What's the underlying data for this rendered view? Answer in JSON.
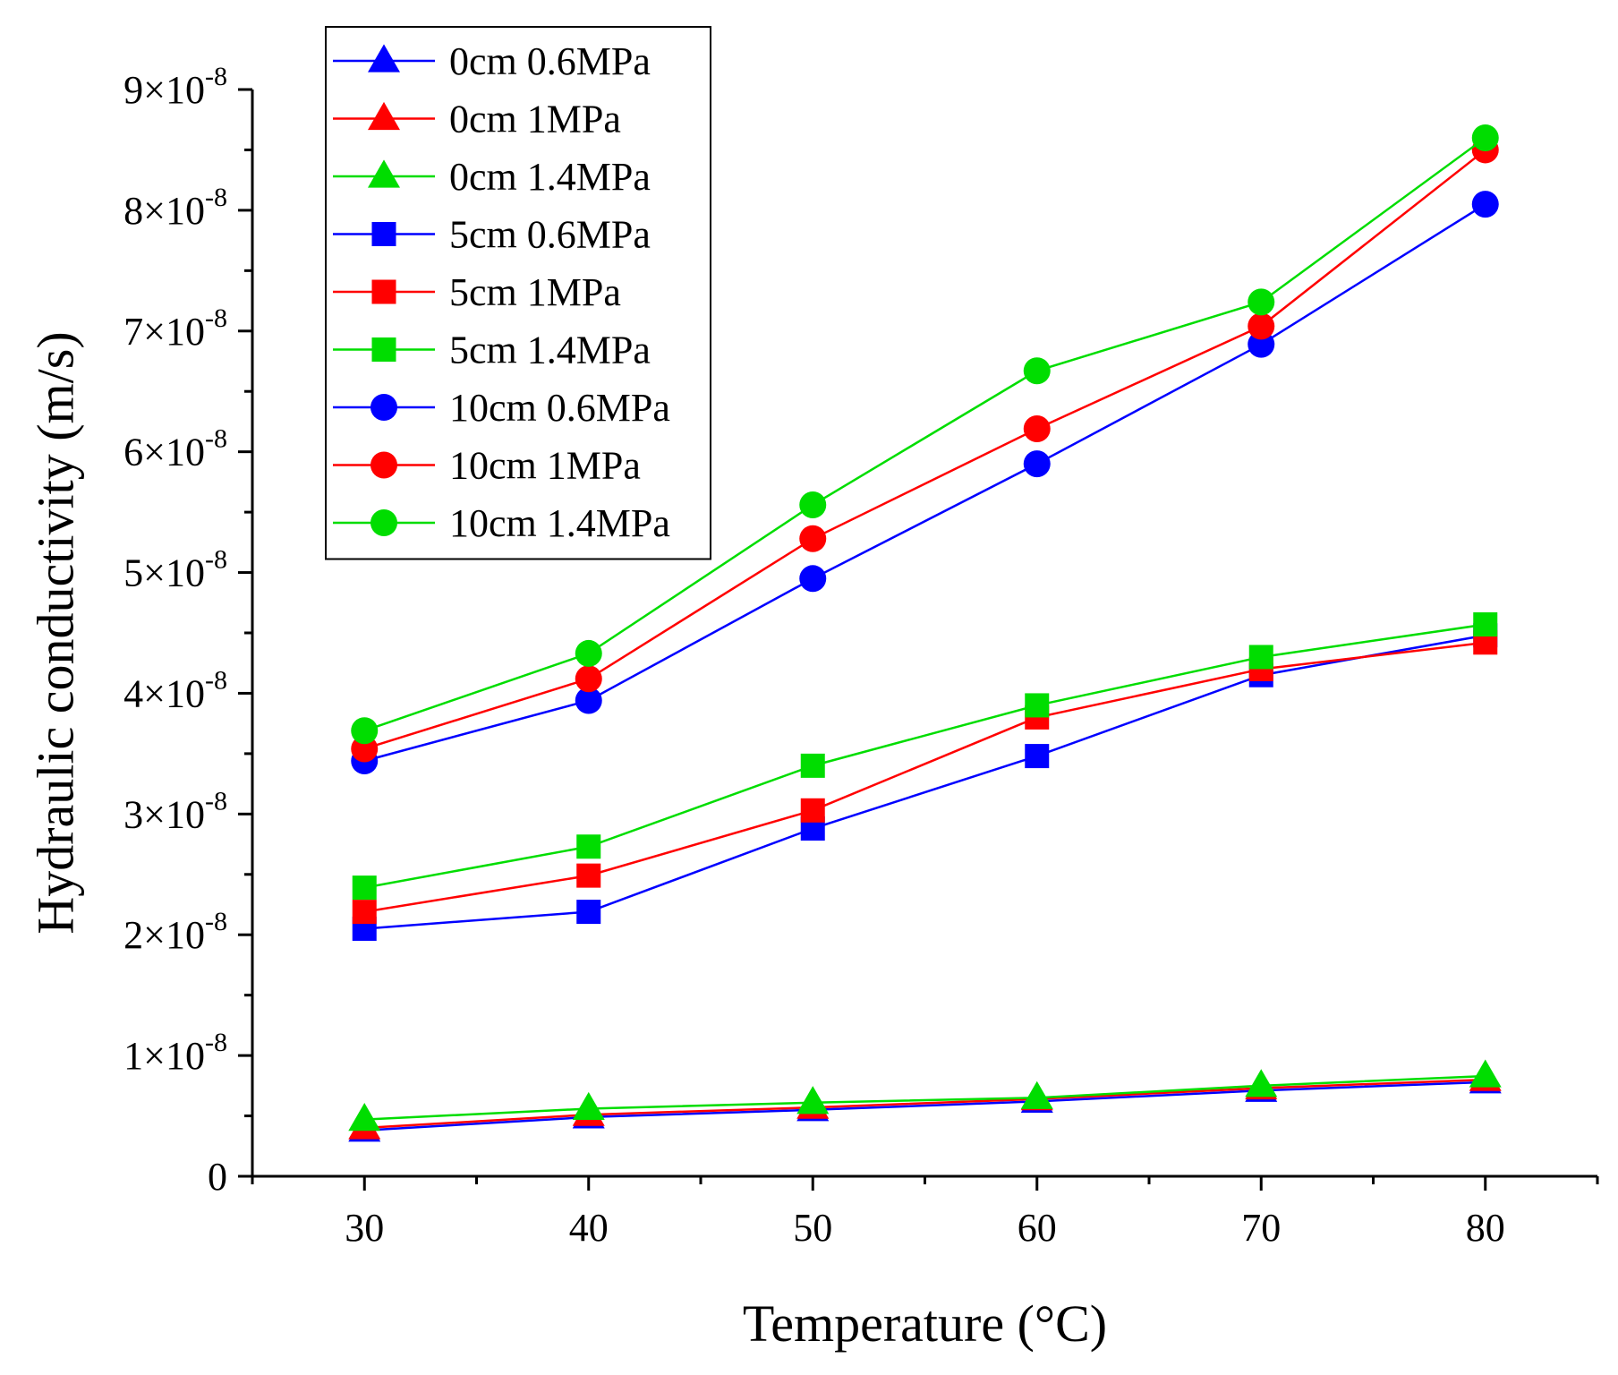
{
  "chart_data": {
    "type": "line",
    "title": "",
    "xlabel": "Temperature (°C)",
    "ylabel": "Hydraulic conductivity (m/s)",
    "xlim": [
      25,
      85
    ],
    "ylim": [
      0,
      9e-08
    ],
    "x": [
      30,
      40,
      50,
      60,
      70,
      80
    ],
    "x_ticks": [
      30,
      40,
      50,
      60,
      70,
      80
    ],
    "y_ticks": [
      {
        "value": 0,
        "mantissa": "0",
        "exponent": ""
      },
      {
        "value": 1e-08,
        "mantissa": "1×10",
        "exponent": "-8"
      },
      {
        "value": 2e-08,
        "mantissa": "2×10",
        "exponent": "-8"
      },
      {
        "value": 3e-08,
        "mantissa": "3×10",
        "exponent": "-8"
      },
      {
        "value": 4e-08,
        "mantissa": "4×10",
        "exponent": "-8"
      },
      {
        "value": 5e-08,
        "mantissa": "5×10",
        "exponent": "-8"
      },
      {
        "value": 6e-08,
        "mantissa": "6×10",
        "exponent": "-8"
      },
      {
        "value": 7e-08,
        "mantissa": "7×10",
        "exponent": "-8"
      },
      {
        "value": 8e-08,
        "mantissa": "8×10",
        "exponent": "-8"
      },
      {
        "value": 9e-08,
        "mantissa": "9×10",
        "exponent": "-8"
      }
    ],
    "grid": false,
    "legend_position": "top-left",
    "series": [
      {
        "name": "0cm 0.6MPa",
        "color": "#0000ff",
        "marker": "triangle",
        "values": [
          3.8e-09,
          4.9e-09,
          5.5e-09,
          6.2e-09,
          7.1e-09,
          7.8e-09
        ]
      },
      {
        "name": "0cm 1MPa",
        "color": "#ff0000",
        "marker": "triangle",
        "values": [
          4e-09,
          5.1e-09,
          5.7e-09,
          6.4e-09,
          7.3e-09,
          8e-09
        ]
      },
      {
        "name": "0cm 1.4MPa",
        "color": "#00dd00",
        "marker": "triangle",
        "values": [
          4.7e-09,
          5.6e-09,
          6.1e-09,
          6.5e-09,
          7.5e-09,
          8.3e-09
        ]
      },
      {
        "name": "5cm 0.6MPa",
        "color": "#0000ff",
        "marker": "square",
        "values": [
          2.05e-08,
          2.19e-08,
          2.88e-08,
          3.48e-08,
          4.15e-08,
          4.48e-08
        ]
      },
      {
        "name": "5cm 1MPa",
        "color": "#ff0000",
        "marker": "square",
        "values": [
          2.19e-08,
          2.49e-08,
          3.03e-08,
          3.8e-08,
          4.2e-08,
          4.42e-08
        ]
      },
      {
        "name": "5cm 1.4MPa",
        "color": "#00dd00",
        "marker": "square",
        "values": [
          2.39e-08,
          2.73e-08,
          3.4e-08,
          3.9e-08,
          4.3e-08,
          4.57e-08
        ]
      },
      {
        "name": "10cm 0.6MPa",
        "color": "#0000ff",
        "marker": "circle",
        "values": [
          3.44e-08,
          3.94e-08,
          4.95e-08,
          5.9e-08,
          6.89e-08,
          8.05e-08
        ]
      },
      {
        "name": "10cm 1MPa",
        "color": "#ff0000",
        "marker": "circle",
        "values": [
          3.54e-08,
          4.12e-08,
          5.28e-08,
          6.19e-08,
          7.04e-08,
          8.5e-08
        ]
      },
      {
        "name": "10cm 1.4MPa",
        "color": "#00dd00",
        "marker": "circle",
        "values": [
          3.69e-08,
          4.33e-08,
          5.56e-08,
          6.67e-08,
          7.24e-08,
          8.6e-08
        ]
      }
    ]
  }
}
